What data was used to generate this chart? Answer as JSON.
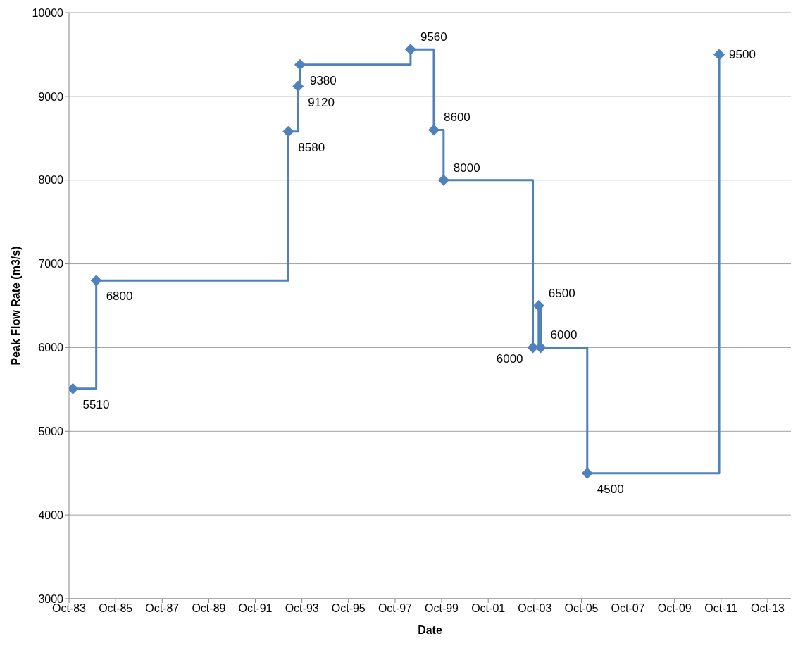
{
  "chart_data": {
    "type": "step",
    "xlabel": "Date",
    "ylabel": "Peak Flow Rate (m3/s)",
    "x": [
      "1983-12",
      "1984-12",
      "1993-03",
      "1993-08",
      "1993-09",
      "1998-06",
      "1999-06",
      "1999-11",
      "2003-09",
      "2003-12",
      "2004-01",
      "2006-01",
      "2011-09"
    ],
    "series": [
      {
        "color": "#4f81bd",
        "values": [
          5510,
          6800,
          8580,
          9120,
          9380,
          9560,
          8600,
          8000,
          6000,
          6500,
          6000,
          4500,
          9500
        ]
      }
    ],
    "xlim": [
      "1983-10",
      "2014-10"
    ],
    "xticks": [
      {
        "value": "1983-10",
        "label": "Oct-83"
      },
      {
        "value": "1985-10",
        "label": "Oct-85"
      },
      {
        "value": "1987-10",
        "label": "Oct-87"
      },
      {
        "value": "1989-10",
        "label": "Oct-89"
      },
      {
        "value": "1991-10",
        "label": "Oct-91"
      },
      {
        "value": "1993-10",
        "label": "Oct-93"
      },
      {
        "value": "1995-10",
        "label": "Oct-95"
      },
      {
        "value": "1997-10",
        "label": "Oct-97"
      },
      {
        "value": "1999-10",
        "label": "Oct-99"
      },
      {
        "value": "2001-10",
        "label": "Oct-01"
      },
      {
        "value": "2003-10",
        "label": "Oct-03"
      },
      {
        "value": "2005-10",
        "label": "Oct-05"
      },
      {
        "value": "2007-10",
        "label": "Oct-07"
      },
      {
        "value": "2009-10",
        "label": "Oct-09"
      },
      {
        "value": "2011-10",
        "label": "Oct-11"
      },
      {
        "value": "2013-10",
        "label": "Oct-13"
      }
    ],
    "ylim": [
      3000,
      10000
    ],
    "yticks": [
      3000,
      4000,
      5000,
      6000,
      7000,
      8000,
      9000,
      10000
    ],
    "grid": "y",
    "marker": "diamond",
    "line_style": "solid",
    "data_labels": true
  }
}
